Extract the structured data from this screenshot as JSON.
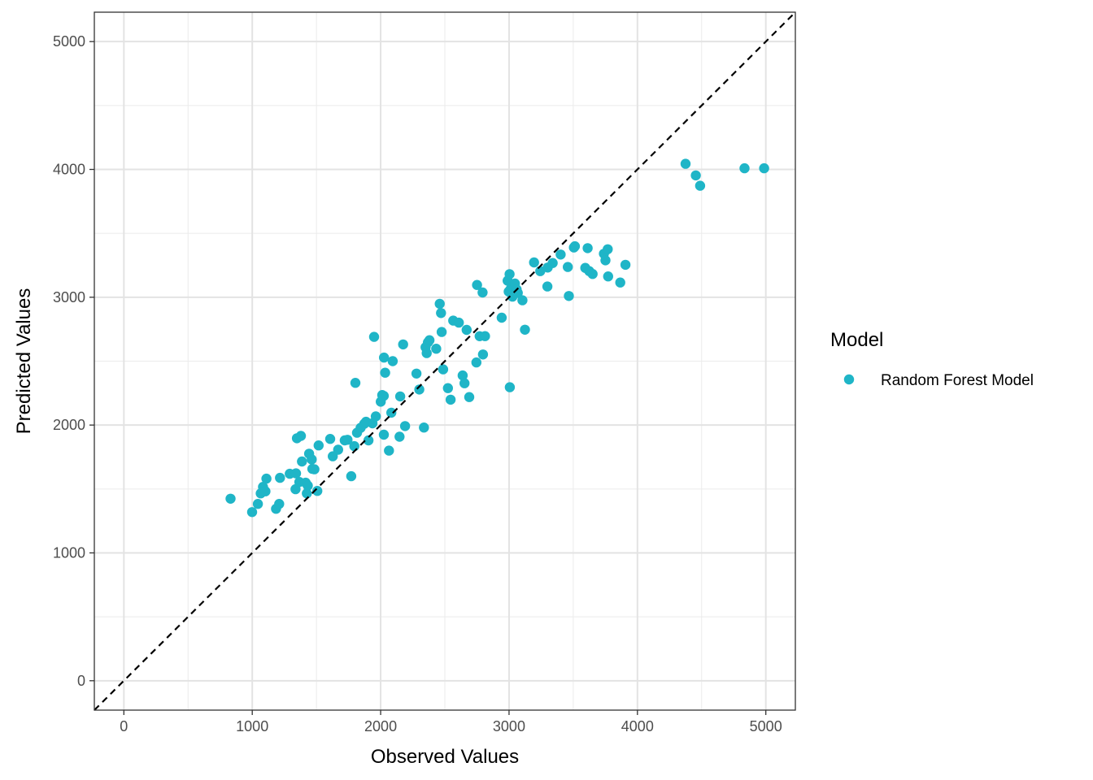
{
  "chart_data": {
    "type": "scatter",
    "xlabel": "Observed Values",
    "ylabel": "Predicted Values",
    "xlim": [
      -230,
      5230
    ],
    "ylim": [
      -230,
      5230
    ],
    "x_ticks": [
      0,
      1000,
      2000,
      3000,
      4000,
      5000
    ],
    "y_ticks": [
      0,
      1000,
      2000,
      3000,
      4000,
      5000
    ],
    "x_tick_labels": [
      "0",
      "1000",
      "2000",
      "3000",
      "4000",
      "5000"
    ],
    "y_tick_labels": [
      "0",
      "1000",
      "2000",
      "3000",
      "4000",
      "5000"
    ],
    "grid": true,
    "reference_line": {
      "type": "identity",
      "style": "dashed",
      "color": "#000000"
    },
    "legend": {
      "title": "Model",
      "position": "right"
    },
    "series": [
      {
        "name": "Random Forest Model",
        "color": "#1FB5C7",
        "points": [
          [
            831,
            1424
          ],
          [
            999,
            1319
          ],
          [
            1044,
            1383
          ],
          [
            1066,
            1466
          ],
          [
            1084,
            1517
          ],
          [
            1103,
            1482
          ],
          [
            1110,
            1581
          ],
          [
            1185,
            1345
          ],
          [
            1210,
            1383
          ],
          [
            1216,
            1587
          ],
          [
            1292,
            1619
          ],
          [
            1337,
            1498
          ],
          [
            1341,
            1622
          ],
          [
            1348,
            1897
          ],
          [
            1367,
            1555
          ],
          [
            1379,
            1915
          ],
          [
            1387,
            1715
          ],
          [
            1416,
            1549
          ],
          [
            1425,
            1466
          ],
          [
            1433,
            1526
          ],
          [
            1443,
            1776
          ],
          [
            1463,
            1731
          ],
          [
            1468,
            1657
          ],
          [
            1484,
            1654
          ],
          [
            1507,
            1485
          ],
          [
            1517,
            1841
          ],
          [
            1607,
            1892
          ],
          [
            1627,
            1756
          ],
          [
            1669,
            1807
          ],
          [
            1720,
            1880
          ],
          [
            1742,
            1885
          ],
          [
            1771,
            1600
          ],
          [
            1795,
            1835
          ],
          [
            1803,
            2330
          ],
          [
            1816,
            1940
          ],
          [
            1844,
            1978
          ],
          [
            1872,
            2010
          ],
          [
            1886,
            2026
          ],
          [
            1905,
            1880
          ],
          [
            1936,
            2014
          ],
          [
            1949,
            2690
          ],
          [
            1962,
            2068
          ],
          [
            2001,
            2183
          ],
          [
            2012,
            2235
          ],
          [
            2024,
            2228
          ],
          [
            2025,
            1925
          ],
          [
            2026,
            2528
          ],
          [
            2035,
            2410
          ],
          [
            2065,
            1800
          ],
          [
            2083,
            2097
          ],
          [
            2094,
            2500
          ],
          [
            2147,
            1909
          ],
          [
            2152,
            2224
          ],
          [
            2175,
            2631
          ],
          [
            2190,
            1992
          ],
          [
            2279,
            2403
          ],
          [
            2301,
            2278
          ],
          [
            2337,
            1981
          ],
          [
            2350,
            2609
          ],
          [
            2359,
            2563
          ],
          [
            2368,
            2647
          ],
          [
            2380,
            2664
          ],
          [
            2433,
            2597
          ],
          [
            2460,
            2949
          ],
          [
            2470,
            2876
          ],
          [
            2475,
            2728
          ],
          [
            2487,
            2436
          ],
          [
            2524,
            2289
          ],
          [
            2545,
            2199
          ],
          [
            2565,
            2817
          ],
          [
            2609,
            2801
          ],
          [
            2639,
            2388
          ],
          [
            2653,
            2327
          ],
          [
            2670,
            2745
          ],
          [
            2690,
            2219
          ],
          [
            2746,
            2490
          ],
          [
            2751,
            3096
          ],
          [
            2771,
            2695
          ],
          [
            2794,
            3037
          ],
          [
            2797,
            2552
          ],
          [
            2813,
            2696
          ],
          [
            2943,
            2840
          ],
          [
            2989,
            3129
          ],
          [
            2997,
            3044
          ],
          [
            3004,
            3181
          ],
          [
            3006,
            2296
          ],
          [
            3012,
            3063
          ],
          [
            3027,
            3005
          ],
          [
            3046,
            3107
          ],
          [
            3059,
            3061
          ],
          [
            3068,
            3034
          ],
          [
            3104,
            2976
          ],
          [
            3124,
            2746
          ],
          [
            3195,
            3272
          ],
          [
            3243,
            3204
          ],
          [
            3299,
            3084
          ],
          [
            3301,
            3232
          ],
          [
            3340,
            3268
          ],
          [
            3402,
            3334
          ],
          [
            3458,
            3237
          ],
          [
            3466,
            3010
          ],
          [
            3505,
            3389
          ],
          [
            3513,
            3399
          ],
          [
            3594,
            3230
          ],
          [
            3612,
            3384
          ],
          [
            3625,
            3204
          ],
          [
            3651,
            3182
          ],
          [
            3739,
            3340
          ],
          [
            3751,
            3289
          ],
          [
            3769,
            3375
          ],
          [
            3772,
            3163
          ],
          [
            3866,
            3115
          ],
          [
            3907,
            3254
          ],
          [
            4375,
            4044
          ],
          [
            4455,
            3953
          ],
          [
            4488,
            3872
          ],
          [
            4834,
            4009
          ],
          [
            4987,
            4009
          ]
        ]
      }
    ]
  }
}
